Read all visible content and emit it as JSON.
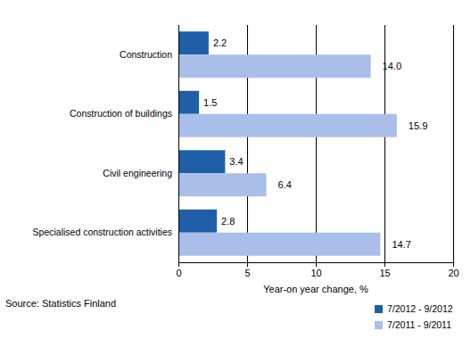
{
  "chart_data": {
    "type": "bar",
    "orientation": "horizontal",
    "categories": [
      "Construction",
      "Construction of buildings",
      "Civil engineering",
      "Specialised construction activities"
    ],
    "series": [
      {
        "name": "7/2012 - 9/2012",
        "color": "#1f5fa8",
        "values": [
          2.2,
          1.5,
          3.4,
          2.8
        ],
        "value_labels": [
          "2.2",
          "1.5",
          "3.4",
          "2.8"
        ]
      },
      {
        "name": "7/2011 - 9/2011",
        "color": "#a9bfea",
        "values": [
          14.0,
          15.9,
          6.4,
          14.7
        ],
        "value_labels": [
          "14.0",
          "15.9",
          "6.4",
          "14.7"
        ]
      }
    ],
    "xlim": [
      0,
      20
    ],
    "xticks": [
      0,
      5,
      10,
      15,
      20
    ],
    "xlabel": "Year-on year change, %",
    "annotations": [
      "Source: Statistics Finland"
    ],
    "grid": true,
    "legend": "bottom-right",
    "data_labels": true
  }
}
